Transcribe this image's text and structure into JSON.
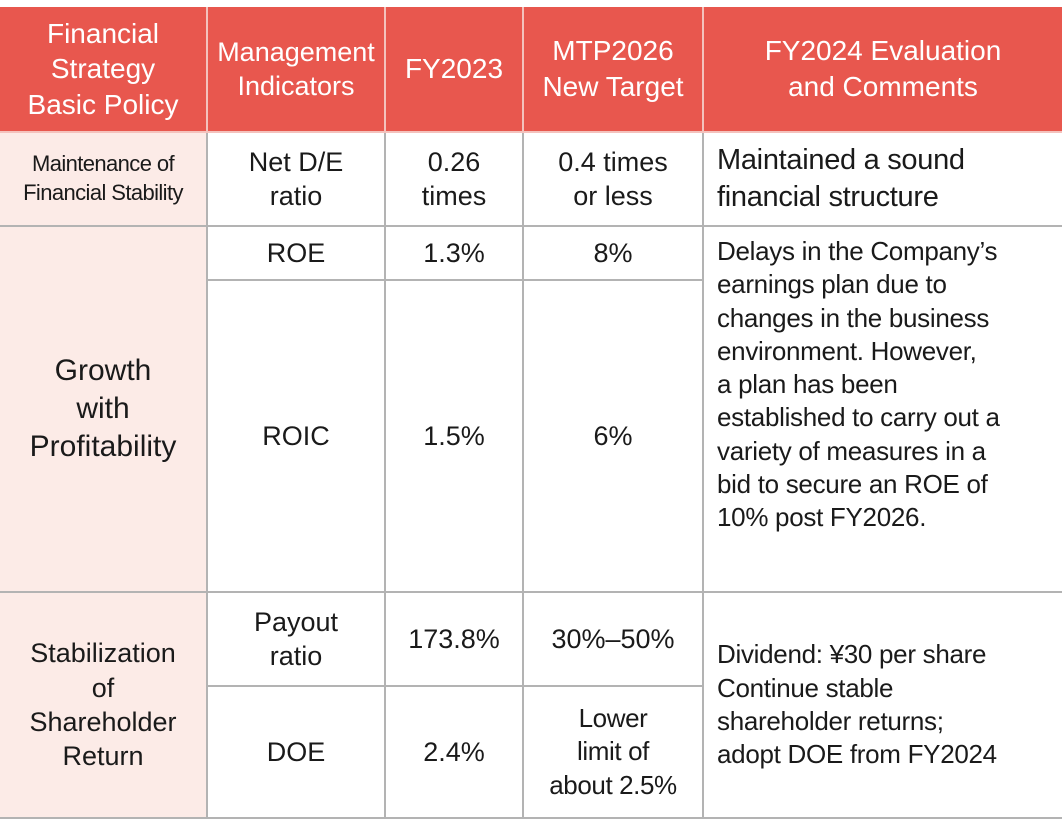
{
  "header": {
    "policy": "Financial\nStrategy\nBasic Policy",
    "indicators": "Management\nIndicators",
    "fy2023": "FY2023",
    "target": "MTP2026\nNew Target",
    "evaluation": "FY2024 Evaluation\nand Comments"
  },
  "rows": [
    {
      "policy": "Maintenance of\nFinancial Stability",
      "indicator": "Net D/E\nratio",
      "fy2023": "0.26\ntimes",
      "target": "0.4 times\nor less",
      "comment": "Maintained a sound\nfinancial structure"
    },
    {
      "policy": "Growth\nwith\nProfitability",
      "indicator": "ROE",
      "fy2023": "1.3%",
      "target": "8%",
      "comment": "Delays in the Company’s\nearnings plan due to\nchanges in the business\nenvironment. However,\na plan has been\nestablished to carry out a\nvariety of measures in a\nbid to secure an ROE of\n10% post FY2026."
    },
    {
      "indicator": "ROIC",
      "fy2023": "1.5%",
      "target": "6%"
    },
    {
      "policy": "Stabilization\nof\nShareholder\nReturn",
      "indicator": "Payout\nratio",
      "fy2023": "173.8%",
      "target": "30%–50%",
      "comment": "Dividend: ¥30 per share\nContinue stable\nshareholder returns;\nadopt DOE from FY2024"
    },
    {
      "indicator": "DOE",
      "fy2023": "2.4%",
      "target": "Lower\nlimit of\nabout 2.5%"
    }
  ],
  "colors": {
    "header": "#e8574e",
    "policy_bg": "#fcebe7",
    "border": "#b3b3b3"
  }
}
